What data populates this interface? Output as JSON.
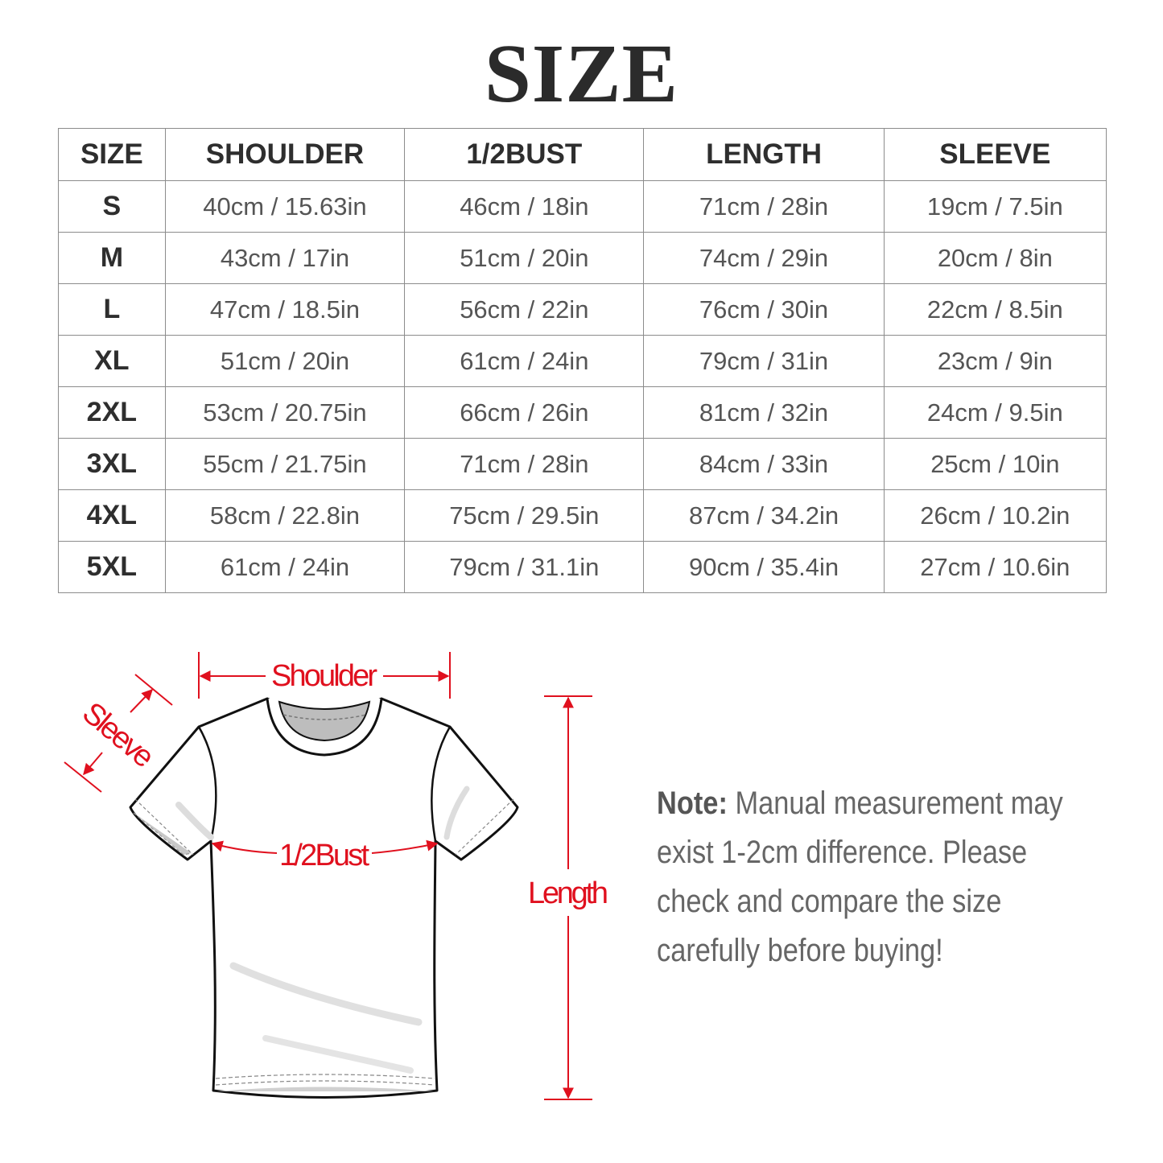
{
  "title": "SIZE",
  "table": {
    "headers": [
      "SIZE",
      "SHOULDER",
      "1/2BUST",
      "LENGTH",
      "SLEEVE"
    ],
    "rows": [
      [
        "S",
        "40cm / 15.63in",
        "46cm / 18in",
        "71cm / 28in",
        "19cm / 7.5in"
      ],
      [
        "M",
        "43cm / 17in",
        "51cm / 20in",
        "74cm / 29in",
        "20cm / 8in"
      ],
      [
        "L",
        "47cm / 18.5in",
        "56cm / 22in",
        "76cm / 30in",
        "22cm / 8.5in"
      ],
      [
        "XL",
        "51cm / 20in",
        "61cm / 24in",
        "79cm / 31in",
        "23cm / 9in"
      ],
      [
        "2XL",
        "53cm / 20.75in",
        "66cm / 26in",
        "81cm / 32in",
        "24cm / 9.5in"
      ],
      [
        "3XL",
        "55cm / 21.75in",
        "71cm / 28in",
        "84cm / 33in",
        "25cm / 10in"
      ],
      [
        "4XL",
        "58cm / 22.8in",
        "75cm / 29.5in",
        "87cm / 34.2in",
        "26cm / 10.2in"
      ],
      [
        "5XL",
        "61cm / 24in",
        "79cm / 31.1in",
        "90cm / 35.4in",
        "27cm / 10.6in"
      ]
    ]
  },
  "diagram": {
    "shoulder_label": "Shoulder",
    "sleeve_label": "Sleeve",
    "bust_label": "1/2Bust",
    "length_label": "Length",
    "accent_color": "#e0101e"
  },
  "note": {
    "label": "Note:",
    "lines": [
      "Manual measurement may",
      "exist 1-2cm difference. Please",
      "check and compare the size",
      "carefully before buying!"
    ]
  }
}
